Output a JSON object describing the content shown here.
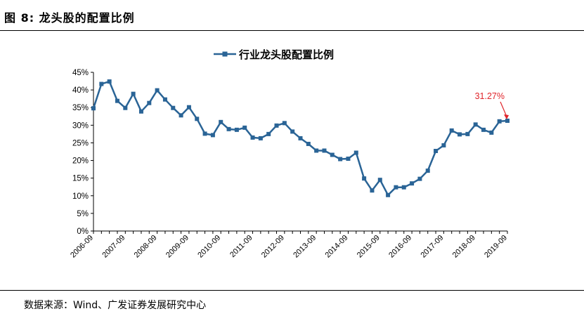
{
  "header": {
    "figure_label": "图 8: 龙头股的配置比例"
  },
  "footer": {
    "source": "数据来源：Wind、广发证券发展研究中心"
  },
  "chart_data": {
    "type": "line",
    "title": "",
    "xlabel": "",
    "ylabel": "",
    "ylim": [
      0,
      45
    ],
    "y_unit": "%",
    "y_ticks": [
      "0%",
      "5%",
      "10%",
      "15%",
      "20%",
      "25%",
      "30%",
      "35%",
      "40%",
      "45%"
    ],
    "x_tick_labels": [
      "2006-09",
      "2007-09",
      "2008-09",
      "2009-09",
      "2010-09",
      "2011-09",
      "2012-09",
      "2013-09",
      "2014-09",
      "2015-09",
      "2016-09",
      "2017-09",
      "2018-09",
      "2019-09"
    ],
    "grid": false,
    "legend_position": "top-center",
    "series": [
      {
        "name": "行业龙头股配置比例",
        "color": "#2a6496",
        "marker": "square",
        "x": [
          "2006-09",
          "2006-12",
          "2007-03",
          "2007-06",
          "2007-09",
          "2007-12",
          "2008-03",
          "2008-06",
          "2008-09",
          "2008-12",
          "2009-03",
          "2009-06",
          "2009-09",
          "2009-12",
          "2010-03",
          "2010-06",
          "2010-09",
          "2010-12",
          "2011-03",
          "2011-06",
          "2011-09",
          "2011-12",
          "2012-03",
          "2012-06",
          "2012-09",
          "2012-12",
          "2013-03",
          "2013-06",
          "2013-09",
          "2013-12",
          "2014-03",
          "2014-06",
          "2014-09",
          "2014-12",
          "2015-03",
          "2015-06",
          "2015-09",
          "2015-12",
          "2016-03",
          "2016-06",
          "2016-09",
          "2016-12",
          "2017-03",
          "2017-06",
          "2017-09",
          "2017-12",
          "2018-03",
          "2018-06",
          "2018-09",
          "2018-12",
          "2019-03",
          "2019-06",
          "2019-09"
        ],
        "values": [
          34.8,
          41.7,
          42.4,
          36.9,
          34.9,
          38.9,
          33.9,
          36.3,
          39.9,
          37.3,
          34.9,
          32.8,
          35.1,
          31.8,
          27.6,
          27.2,
          30.9,
          28.9,
          28.7,
          29.3,
          26.5,
          26.3,
          27.5,
          29.9,
          30.6,
          28.2,
          26.3,
          24.7,
          22.8,
          22.8,
          21.6,
          20.4,
          20.5,
          22.2,
          14.9,
          11.5,
          14.5,
          10.2,
          12.4,
          12.4,
          13.5,
          14.8,
          17.1,
          22.7,
          24.3,
          28.5,
          27.4,
          27.5,
          30.2,
          28.7,
          27.9,
          31.1,
          31.27
        ]
      }
    ],
    "annotations": [
      {
        "text": "31.27%",
        "target": "2019-09",
        "color": "#e0242a"
      }
    ]
  }
}
